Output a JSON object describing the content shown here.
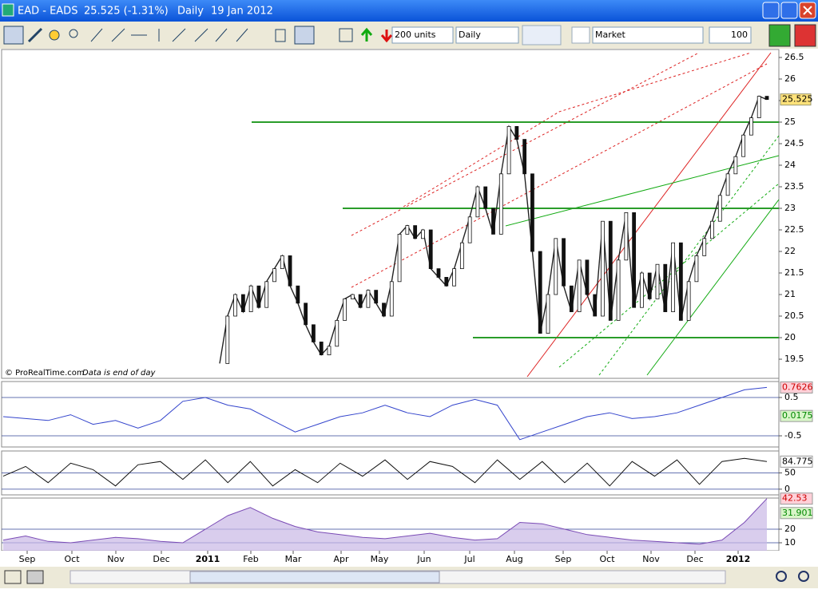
{
  "window": {
    "title": "EAD - EADS",
    "quote": "25.525 (-1.31%)",
    "period": "Daily",
    "date": "19 Jan 2012"
  },
  "toolbar": {
    "units": "200 units",
    "timeframe": "Daily",
    "order_type": "Market",
    "quantity": 100
  },
  "price_panel": {
    "type": "line",
    "ylim": [
      19.056,
      26.685
    ],
    "yticks": [
      19.5,
      20,
      20.5,
      21,
      21.5,
      22,
      22.5,
      23,
      23.5,
      24,
      24.5,
      25,
      25.5,
      26,
      26.5
    ],
    "closes": [
      19.4,
      20.5,
      21.0,
      20.6,
      21.2,
      20.7,
      21.3,
      21.6,
      21.9,
      21.2,
      20.8,
      20.3,
      19.9,
      19.6,
      19.8,
      20.4,
      20.9,
      21.0,
      20.7,
      21.1,
      20.8,
      20.5,
      21.3,
      22.4,
      22.6,
      22.3,
      22.5,
      21.6,
      21.4,
      21.2,
      21.6,
      22.2,
      22.8,
      23.5,
      23.0,
      22.4,
      23.8,
      24.9,
      24.6,
      23.8,
      22.0,
      20.1,
      21.0,
      22.3,
      21.2,
      20.6,
      21.8,
      21.0,
      20.5,
      22.7,
      20.4,
      21.8,
      22.9,
      20.7,
      21.5,
      20.9,
      21.7,
      20.6,
      22.2,
      20.4,
      21.3,
      21.9,
      22.3,
      22.7,
      23.3,
      23.8,
      24.2,
      24.7,
      25.1,
      25.6,
      25.525
    ],
    "last_price": 25.525,
    "levels": [
      25,
      23,
      20
    ],
    "watermark": "© ProRealTime.com",
    "note": "Data is end of day"
  },
  "macd_panel": {
    "type": "line",
    "ylim": [
      -0.792,
      0.917
    ],
    "yticks": [
      0.5,
      -0.5
    ],
    "values": [
      0.0,
      -0.05,
      -0.1,
      0.05,
      -0.2,
      -0.1,
      -0.3,
      -0.1,
      0.4,
      0.5,
      0.3,
      0.2,
      -0.1,
      -0.4,
      -0.2,
      0.0,
      0.1,
      0.3,
      0.1,
      0.0,
      0.3,
      0.45,
      0.3,
      -0.6,
      -0.4,
      -0.2,
      0.0,
      0.1,
      -0.05,
      0.0,
      0.1,
      0.3,
      0.5,
      0.7,
      0.7626
    ],
    "last_values": [
      0.7626,
      0.0175
    ]
  },
  "stochastic_panel": {
    "type": "line",
    "ylim": [
      -17.5,
      117.5
    ],
    "yticks": [
      50,
      0
    ],
    "values": [
      40,
      70,
      20,
      80,
      60,
      10,
      75,
      85,
      30,
      90,
      20,
      85,
      10,
      60,
      20,
      80,
      40,
      90,
      30,
      85,
      70,
      20,
      90,
      30,
      85,
      20,
      80,
      10,
      85,
      40,
      90,
      15,
      85,
      95,
      84.775
    ],
    "last_values": [
      84.775
    ]
  },
  "volatility_panel": {
    "type": "line",
    "ylim": [
      4.12,
      42.94
    ],
    "yticks": [
      20,
      10
    ],
    "values": [
      12,
      15,
      11,
      10,
      12,
      14,
      13,
      11,
      10,
      20,
      30,
      36,
      28,
      22,
      18,
      16,
      14,
      13,
      15,
      17,
      14,
      12,
      13,
      25,
      24,
      20,
      16,
      14,
      12,
      11,
      10,
      9,
      12,
      25,
      42.53
    ],
    "last_values": [
      42.53,
      31.901
    ]
  },
  "x_axis": {
    "labels": [
      "Sep",
      "Oct",
      "Nov",
      "Dec",
      "2011",
      "Feb",
      "Mar",
      "Apr",
      "May",
      "Jun",
      "Jul",
      "Aug",
      "Sep",
      "Oct",
      "Nov",
      "Dec",
      "2012"
    ]
  }
}
